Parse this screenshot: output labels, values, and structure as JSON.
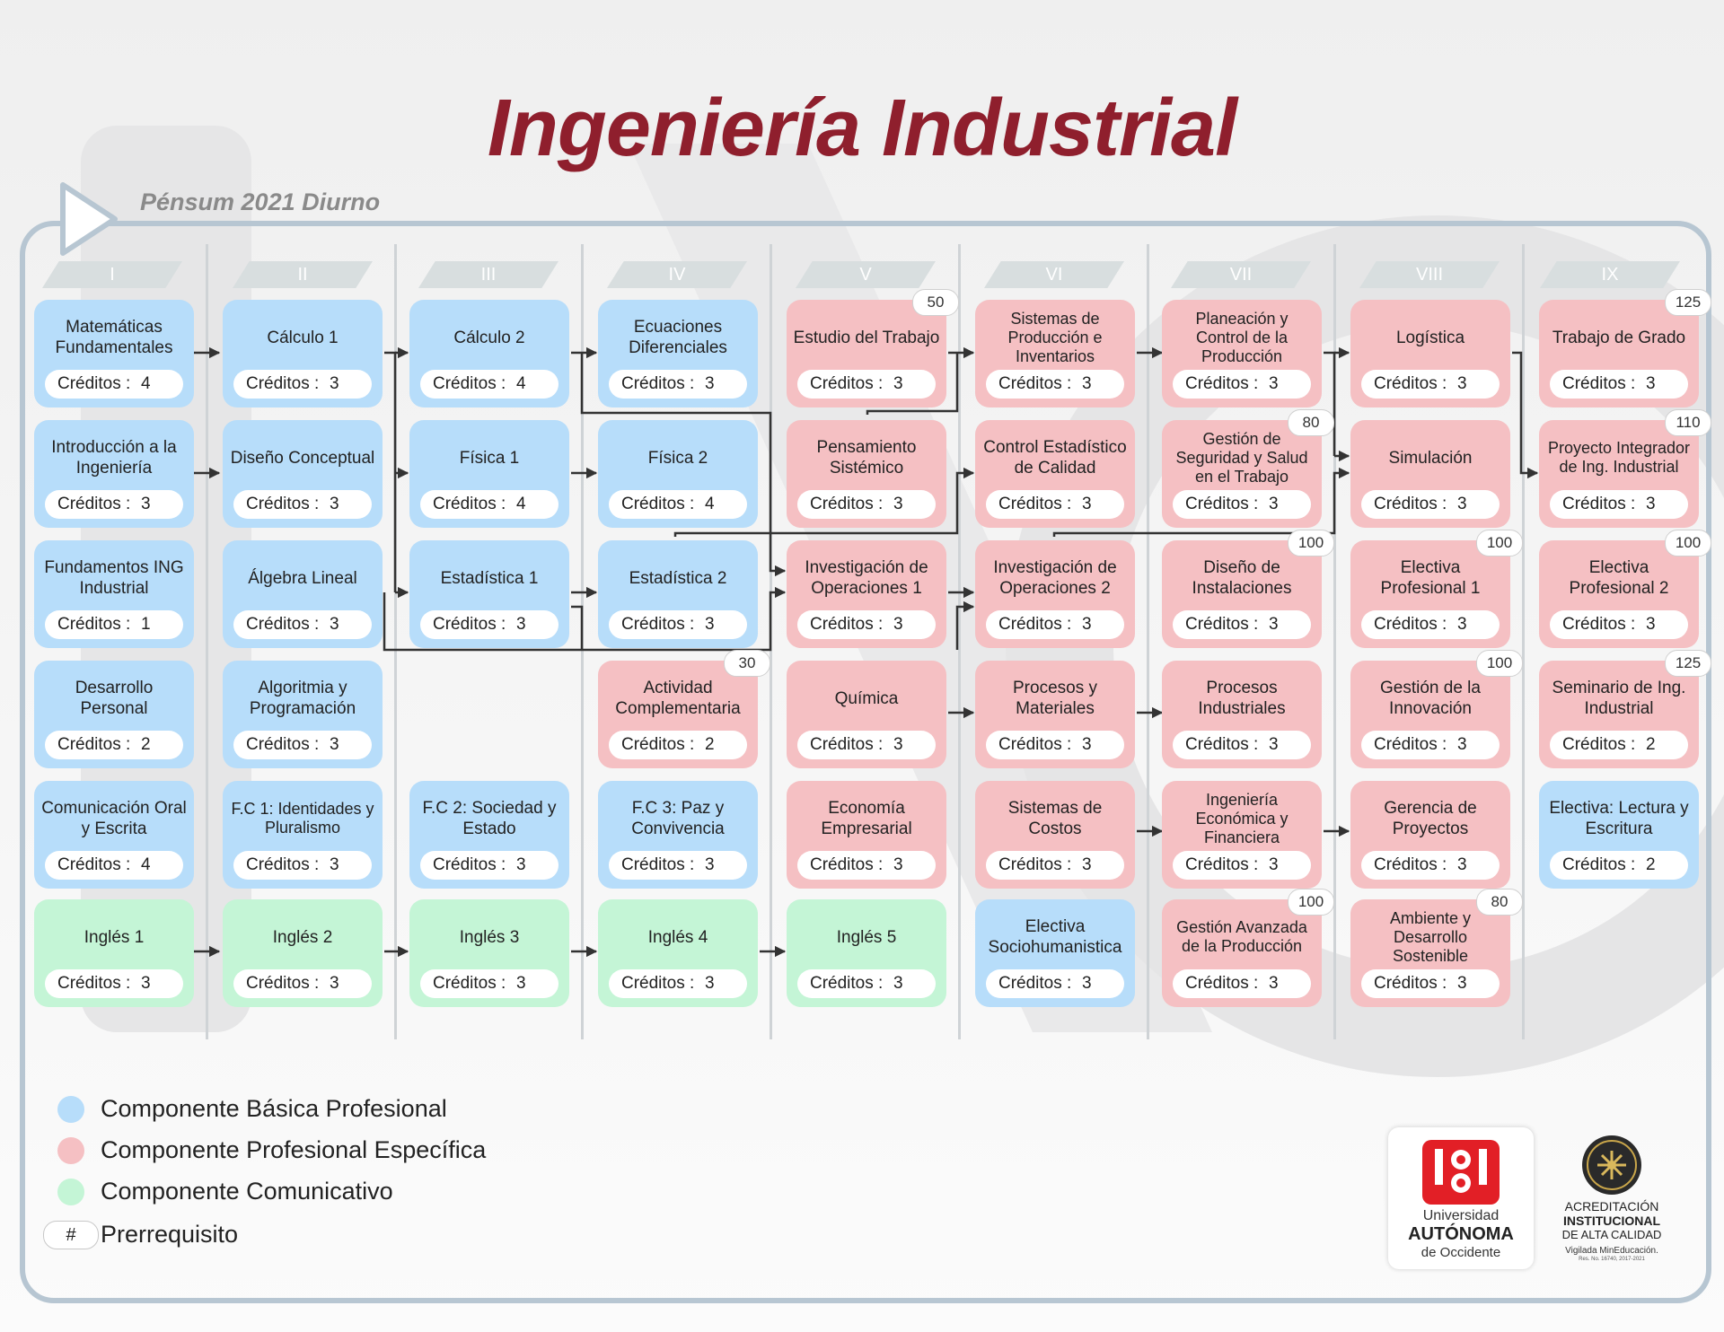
{
  "header": {
    "title": "Ingeniería Industrial",
    "subtitle": "Pénsum 2021 Diurno"
  },
  "colors": {
    "basica": "#b7ddfa",
    "profesional": "#f5c0c3",
    "comunicativo": "#c4f5d6",
    "title": "#8f1f2d"
  },
  "credit_label": "Créditos :",
  "semesters": [
    "I",
    "II",
    "III",
    "IV",
    "V",
    "VI",
    "VII",
    "VIII",
    "IX"
  ],
  "courses": [
    {
      "id": "mat-fund",
      "name": "Matemáticas Fundamentales",
      "credits": "4",
      "type": "basica",
      "sem": 0,
      "row": 0
    },
    {
      "id": "intro-ing",
      "name": "Introducción a la Ingeniería",
      "credits": "3",
      "type": "basica",
      "sem": 0,
      "row": 1
    },
    {
      "id": "fund-ing",
      "name": "Fundamentos ING Industrial",
      "credits": "1",
      "type": "basica",
      "sem": 0,
      "row": 2
    },
    {
      "id": "des-pers",
      "name": "Desarrollo Personal",
      "credits": "2",
      "type": "basica",
      "sem": 0,
      "row": 3
    },
    {
      "id": "com-oral",
      "name": "Comunicación Oral y Escrita",
      "credits": "4",
      "type": "basica",
      "sem": 0,
      "row": 4
    },
    {
      "id": "ingles1",
      "name": "Inglés 1",
      "credits": "3",
      "type": "comunicativo",
      "sem": 0,
      "row": 5
    },
    {
      "id": "calc1",
      "name": "Cálculo 1",
      "credits": "3",
      "type": "basica",
      "sem": 1,
      "row": 0
    },
    {
      "id": "dis-conc",
      "name": "Diseño Conceptual",
      "credits": "3",
      "type": "basica",
      "sem": 1,
      "row": 1
    },
    {
      "id": "alg-lin",
      "name": "Álgebra Lineal",
      "credits": "3",
      "type": "basica",
      "sem": 1,
      "row": 2
    },
    {
      "id": "algoritmia",
      "name": "Algoritmia y Programación",
      "credits": "3",
      "type": "basica",
      "sem": 1,
      "row": 3
    },
    {
      "id": "fc1",
      "name": "F.C 1: Identidades y Pluralismo",
      "credits": "3",
      "type": "basica",
      "sem": 1,
      "row": 4
    },
    {
      "id": "ingles2",
      "name": "Inglés 2",
      "credits": "3",
      "type": "comunicativo",
      "sem": 1,
      "row": 5
    },
    {
      "id": "calc2",
      "name": "Cálculo 2",
      "credits": "4",
      "type": "basica",
      "sem": 2,
      "row": 0
    },
    {
      "id": "fisica1",
      "name": "Física 1",
      "credits": "4",
      "type": "basica",
      "sem": 2,
      "row": 1
    },
    {
      "id": "estad1",
      "name": "Estadística 1",
      "credits": "3",
      "type": "basica",
      "sem": 2,
      "row": 2
    },
    {
      "id": "fc2",
      "name": "F.C 2: Sociedad y Estado",
      "credits": "3",
      "type": "basica",
      "sem": 2,
      "row": 4
    },
    {
      "id": "ingles3",
      "name": "Inglés 3",
      "credits": "3",
      "type": "comunicativo",
      "sem": 2,
      "row": 5
    },
    {
      "id": "ecdif",
      "name": "Ecuaciones Diferenciales",
      "credits": "3",
      "type": "basica",
      "sem": 3,
      "row": 0
    },
    {
      "id": "fisica2",
      "name": "Física 2",
      "credits": "4",
      "type": "basica",
      "sem": 3,
      "row": 1
    },
    {
      "id": "estad2",
      "name": "Estadística 2",
      "credits": "3",
      "type": "basica",
      "sem": 3,
      "row": 2
    },
    {
      "id": "act-comp",
      "name": "Actividad Complementaria",
      "credits": "2",
      "type": "profesional",
      "sem": 3,
      "row": 3,
      "prereq": "30"
    },
    {
      "id": "fc3",
      "name": "F.C 3: Paz y Convivencia",
      "credits": "3",
      "type": "basica",
      "sem": 3,
      "row": 4
    },
    {
      "id": "ingles4",
      "name": "Inglés 4",
      "credits": "3",
      "type": "comunicativo",
      "sem": 3,
      "row": 5
    },
    {
      "id": "est-trab",
      "name": "Estudio del Trabajo",
      "credits": "3",
      "type": "profesional",
      "sem": 4,
      "row": 0,
      "prereq": "50"
    },
    {
      "id": "pens-sist",
      "name": "Pensamiento Sistémico",
      "credits": "3",
      "type": "profesional",
      "sem": 4,
      "row": 1
    },
    {
      "id": "inv-op1",
      "name": "Investigación de Operaciones 1",
      "credits": "3",
      "type": "profesional",
      "sem": 4,
      "row": 2
    },
    {
      "id": "quimica",
      "name": "Química",
      "credits": "3",
      "type": "profesional",
      "sem": 4,
      "row": 3
    },
    {
      "id": "econ-emp",
      "name": "Economía Empresarial",
      "credits": "3",
      "type": "profesional",
      "sem": 4,
      "row": 4
    },
    {
      "id": "ingles5",
      "name": "Inglés 5",
      "credits": "3",
      "type": "comunicativo",
      "sem": 4,
      "row": 5
    },
    {
      "id": "sist-prod",
      "name": "Sistemas de Producción e Inventarios",
      "credits": "3",
      "type": "profesional",
      "sem": 5,
      "row": 0
    },
    {
      "id": "ctrl-est",
      "name": "Control Estadístico de Calidad",
      "credits": "3",
      "type": "profesional",
      "sem": 5,
      "row": 1
    },
    {
      "id": "inv-op2",
      "name": "Investigación de Operaciones 2",
      "credits": "3",
      "type": "profesional",
      "sem": 5,
      "row": 2
    },
    {
      "id": "proc-mat",
      "name": "Procesos y Materiales",
      "credits": "3",
      "type": "profesional",
      "sem": 5,
      "row": 3
    },
    {
      "id": "sist-cost",
      "name": "Sistemas de Costos",
      "credits": "3",
      "type": "profesional",
      "sem": 5,
      "row": 4
    },
    {
      "id": "elec-soc",
      "name": "Electiva Sociohumanistica",
      "credits": "3",
      "type": "basica",
      "sem": 5,
      "row": 5
    },
    {
      "id": "plan-ctrl",
      "name": "Planeación y Control de la Producción",
      "credits": "3",
      "type": "profesional",
      "sem": 6,
      "row": 0
    },
    {
      "id": "gest-seg",
      "name": "Gestión de Seguridad y Salud en el Trabajo",
      "credits": "3",
      "type": "profesional",
      "sem": 6,
      "row": 1,
      "prereq": "80"
    },
    {
      "id": "dis-inst",
      "name": "Diseño de Instalaciones",
      "credits": "3",
      "type": "profesional",
      "sem": 6,
      "row": 2,
      "prereq": "100"
    },
    {
      "id": "proc-ind",
      "name": "Procesos Industriales",
      "credits": "3",
      "type": "profesional",
      "sem": 6,
      "row": 3
    },
    {
      "id": "ing-econ",
      "name": "Ingeniería Económica y Financiera",
      "credits": "3",
      "type": "profesional",
      "sem": 6,
      "row": 4
    },
    {
      "id": "gest-av",
      "name": "Gestión Avanzada de la Producción",
      "credits": "3",
      "type": "profesional",
      "sem": 6,
      "row": 5,
      "prereq": "100"
    },
    {
      "id": "logistica",
      "name": "Logística",
      "credits": "3",
      "type": "profesional",
      "sem": 7,
      "row": 0
    },
    {
      "id": "simulacion",
      "name": "Simulación",
      "credits": "3",
      "type": "profesional",
      "sem": 7,
      "row": 1
    },
    {
      "id": "elec-prof1",
      "name": "Electiva Profesional 1",
      "credits": "3",
      "type": "profesional",
      "sem": 7,
      "row": 2,
      "prereq": "100"
    },
    {
      "id": "gest-innov",
      "name": "Gestión de la Innovación",
      "credits": "3",
      "type": "profesional",
      "sem": 7,
      "row": 3,
      "prereq": "100"
    },
    {
      "id": "ger-proy",
      "name": "Gerencia de Proyectos",
      "credits": "3",
      "type": "profesional",
      "sem": 7,
      "row": 4
    },
    {
      "id": "amb-des",
      "name": "Ambiente y Desarrollo Sostenible",
      "credits": "3",
      "type": "profesional",
      "sem": 7,
      "row": 5,
      "prereq": "80"
    },
    {
      "id": "trab-grado",
      "name": "Trabajo de Grado",
      "credits": "3",
      "type": "profesional",
      "sem": 8,
      "row": 0,
      "prereq": "125"
    },
    {
      "id": "proy-int",
      "name": "Proyecto Integrador de Ing. Industrial",
      "credits": "3",
      "type": "profesional",
      "sem": 8,
      "row": 1,
      "prereq": "110"
    },
    {
      "id": "elec-prof2",
      "name": "Electiva Profesional 2",
      "credits": "3",
      "type": "profesional",
      "sem": 8,
      "row": 2,
      "prereq": "100"
    },
    {
      "id": "seminario",
      "name": "Seminario de Ing. Industrial",
      "credits": "2",
      "type": "profesional",
      "sem": 8,
      "row": 3,
      "prereq": "125"
    },
    {
      "id": "elec-lect",
      "name": "Electiva: Lectura y Escritura",
      "credits": "2",
      "type": "basica",
      "sem": 8,
      "row": 4
    }
  ],
  "legend": [
    {
      "label": "Componente Básica Profesional",
      "type": "basica"
    },
    {
      "label": "Componente Profesional Específica",
      "type": "profesional"
    },
    {
      "label": "Componente Comunicativo",
      "type": "comunicativo"
    },
    {
      "label": "Prerrequisito",
      "symbol": "#"
    }
  ],
  "logos": {
    "uao": {
      "line1": "Universidad",
      "line2": "AUTÓNOMA",
      "line3": "de Occidente"
    },
    "acreditacion": {
      "line1": "ACREDITACIÓN",
      "line2": "INSTITUCIONAL",
      "line3": "DE ALTA CALIDAD",
      "line4": "Vigilada MinEducación.",
      "line5": "Res. No. 16740, 2017-2021"
    }
  }
}
